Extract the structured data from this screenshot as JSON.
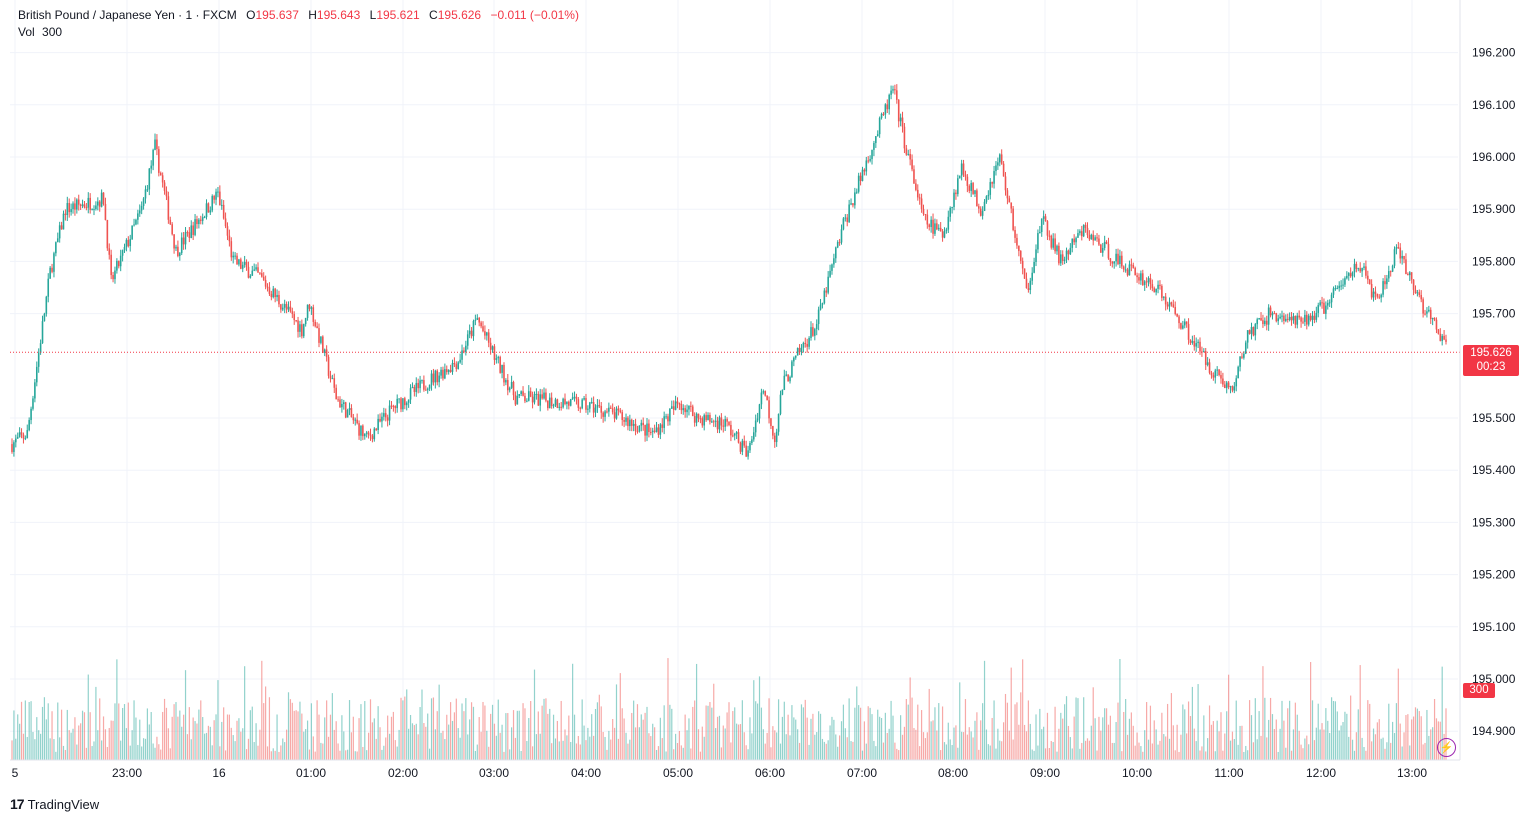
{
  "legend": {
    "symbol": "British Pound / Japanese Yen · 1 · FXCM",
    "o_label": "O",
    "o_value": "195.637",
    "h_label": "H",
    "h_value": "195.643",
    "l_label": "L",
    "l_value": "195.621",
    "c_label": "C",
    "c_value": "195.626",
    "change": "−0.011 (−0.01%)",
    "vol_label": "Vol",
    "vol_value": "300"
  },
  "price_tag": {
    "price": "195.626",
    "countdown": "00:23"
  },
  "volume_tag": "300",
  "branding": {
    "name": "TradingView"
  },
  "colors": {
    "up": "#26a69a",
    "down": "#ef5350",
    "last_price": "#f23645",
    "grid": "#f0f3fa",
    "text": "#131722"
  },
  "chart_data": {
    "type": "candlestick",
    "title": "British Pound / Japanese Yen · 1 · FXCM",
    "y_axis": {
      "ticks": [
        "196.200",
        "196.100",
        "196.000",
        "195.900",
        "195.800",
        "195.700",
        "195.500",
        "195.400",
        "195.300",
        "195.200",
        "195.100",
        "195.000",
        "194.900"
      ],
      "tick_values": [
        196.2,
        196.1,
        196.0,
        195.9,
        195.8,
        195.7,
        195.5,
        195.4,
        195.3,
        195.2,
        195.1,
        195.0,
        194.9
      ],
      "range": [
        194.85,
        196.3
      ]
    },
    "x_axis": {
      "ticks": [
        "5",
        "23:00",
        "16",
        "01:00",
        "02:00",
        "03:00",
        "04:00",
        "05:00",
        "06:00",
        "07:00",
        "08:00",
        "09:00",
        "10:00",
        "11:00",
        "12:00",
        "13:00"
      ]
    },
    "last_price": 195.626,
    "price_path": [
      [
        0,
        195.45
      ],
      [
        8,
        195.47
      ],
      [
        20,
        195.78
      ],
      [
        28,
        195.9
      ],
      [
        48,
        195.92
      ],
      [
        52,
        195.76
      ],
      [
        68,
        195.9
      ],
      [
        75,
        196.02
      ],
      [
        86,
        195.82
      ],
      [
        98,
        195.88
      ],
      [
        108,
        195.93
      ],
      [
        116,
        195.8
      ],
      [
        130,
        195.77
      ],
      [
        152,
        195.67
      ],
      [
        156,
        195.72
      ],
      [
        170,
        195.54
      ],
      [
        186,
        195.46
      ],
      [
        200,
        195.52
      ],
      [
        218,
        195.57
      ],
      [
        234,
        195.61
      ],
      [
        244,
        195.69
      ],
      [
        254,
        195.61
      ],
      [
        264,
        195.54
      ],
      [
        290,
        195.53
      ],
      [
        306,
        195.52
      ],
      [
        320,
        195.5
      ],
      [
        336,
        195.47
      ],
      [
        350,
        195.53
      ],
      [
        360,
        195.5
      ],
      [
        374,
        195.49
      ],
      [
        386,
        195.43
      ],
      [
        394,
        195.56
      ],
      [
        400,
        195.46
      ],
      [
        404,
        195.56
      ],
      [
        412,
        195.62
      ],
      [
        422,
        195.68
      ],
      [
        436,
        195.87
      ],
      [
        450,
        196.01
      ],
      [
        462,
        196.13
      ],
      [
        468,
        196.03
      ],
      [
        478,
        195.88
      ],
      [
        488,
        195.85
      ],
      [
        498,
        195.98
      ],
      [
        508,
        195.9
      ],
      [
        518,
        196.0
      ],
      [
        532,
        195.74
      ],
      [
        540,
        195.88
      ],
      [
        550,
        195.8
      ],
      [
        562,
        195.86
      ],
      [
        580,
        195.8
      ],
      [
        600,
        195.75
      ],
      [
        614,
        195.68
      ],
      [
        628,
        195.6
      ],
      [
        640,
        195.55
      ],
      [
        648,
        195.66
      ],
      [
        660,
        195.7
      ],
      [
        676,
        195.68
      ],
      [
        690,
        195.72
      ],
      [
        706,
        195.8
      ],
      [
        716,
        195.72
      ],
      [
        726,
        195.82
      ],
      [
        734,
        195.76
      ],
      [
        742,
        195.7
      ],
      [
        752,
        195.64
      ]
    ],
    "volume": {
      "last": 300
    }
  }
}
